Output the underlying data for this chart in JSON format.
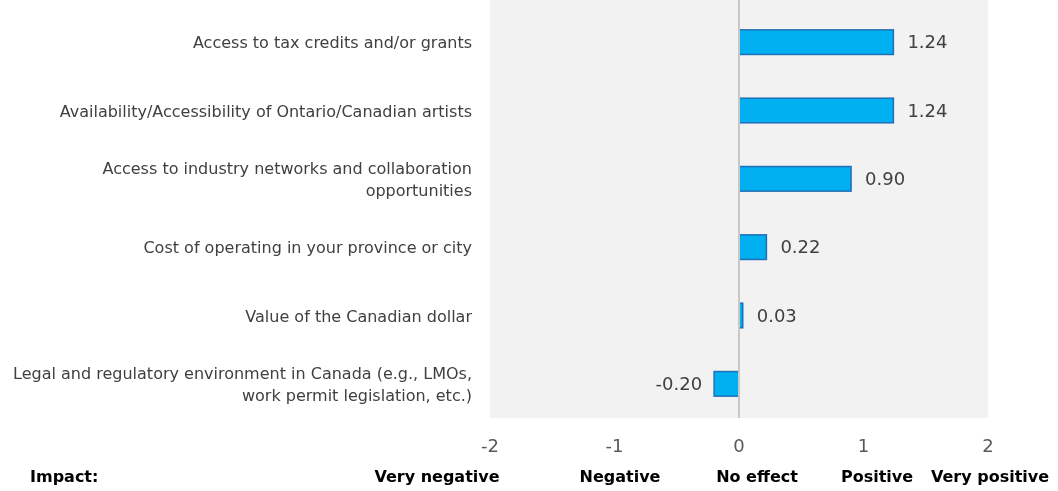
{
  "chart_data": {
    "type": "bar",
    "orientation": "horizontal",
    "categories": [
      "Access to tax credits and/or grants",
      "Availability/Accessibility of Ontario/Canadian artists",
      "Access to industry networks and collaboration opportunities",
      "Cost of operating in your province or city",
      "Value of the Canadian dollar",
      "Legal and regulatory environment in Canada (e.g., LMOs, work permit legislation, etc.)"
    ],
    "values": [
      1.24,
      1.24,
      0.9,
      0.22,
      0.03,
      -0.2
    ],
    "value_labels": [
      "1.24",
      "1.24",
      "0.90",
      "0.22",
      "0.03",
      "-0.20"
    ],
    "color": "#00b0f0",
    "xlim": [
      -2,
      2
    ],
    "xticks": [
      -2,
      -1,
      0,
      1,
      2
    ],
    "annotations": [
      "Impact:",
      "Very negative",
      "Negative",
      "No effect",
      "Positive",
      "Very positive"
    ]
  }
}
